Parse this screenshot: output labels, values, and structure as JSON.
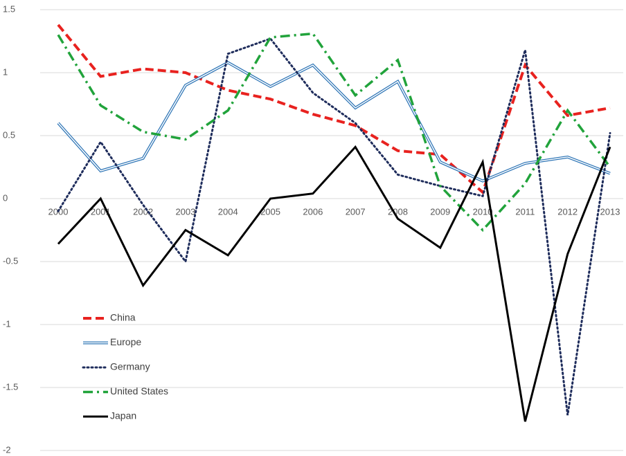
{
  "chart_data": {
    "type": "line",
    "categories": [
      "2000",
      "2001",
      "2002",
      "2003",
      "2004",
      "2005",
      "2006",
      "2007",
      "2008",
      "2009",
      "2010",
      "2011",
      "2012",
      "2013"
    ],
    "ylim": [
      -2,
      1.5
    ],
    "yticks": [
      -2,
      -1.5,
      -1,
      -0.5,
      0,
      0.5,
      1,
      1.5
    ],
    "grid": true,
    "legend": "lower left",
    "series": [
      {
        "name": "China",
        "color": "#e8221f",
        "line_style": "dashed",
        "values": [
          1.38,
          0.97,
          1.03,
          1.0,
          0.86,
          0.79,
          0.67,
          0.58,
          0.38,
          0.35,
          0.05,
          1.06,
          0.66,
          0.72
        ]
      },
      {
        "name": "Europe",
        "color": "#2e75b6",
        "line_style": "double",
        "values": [
          0.6,
          0.22,
          0.32,
          0.9,
          1.08,
          0.89,
          1.06,
          0.72,
          0.93,
          0.29,
          0.14,
          0.28,
          0.33,
          0.2
        ]
      },
      {
        "name": "Germany",
        "color": "#1f2d5c",
        "line_style": "dotted",
        "values": [
          -0.1,
          0.45,
          -0.05,
          -0.5,
          1.15,
          1.27,
          0.84,
          0.6,
          0.19,
          0.1,
          0.02,
          1.18,
          -1.72,
          0.52
        ]
      },
      {
        "name": "United States",
        "color": "#21a33b",
        "line_style": "dashdot",
        "values": [
          1.3,
          0.74,
          0.53,
          0.47,
          0.7,
          1.28,
          1.31,
          0.82,
          1.1,
          0.1,
          -0.25,
          0.12,
          0.7,
          0.25
        ]
      },
      {
        "name": "Japan",
        "color": "#000000",
        "line_style": "solid",
        "values": [
          -0.36,
          0,
          -0.69,
          -0.25,
          -0.45,
          0,
          0.04,
          0.41,
          -0.16,
          -0.39,
          0.29,
          -1.77,
          -0.44,
          0.41
        ]
      }
    ]
  }
}
